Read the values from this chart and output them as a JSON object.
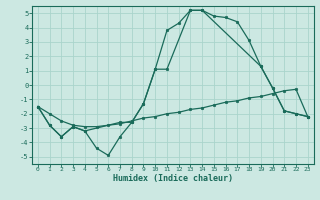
{
  "xlabel": "Humidex (Indice chaleur)",
  "background_color": "#cce8e2",
  "grid_color": "#aad4cc",
  "line_color": "#1a6b5a",
  "xlim": [
    -0.5,
    23.5
  ],
  "ylim": [
    -5.5,
    5.5
  ],
  "yticks": [
    -5,
    -4,
    -3,
    -2,
    -1,
    0,
    1,
    2,
    3,
    4,
    5
  ],
  "xticks": [
    0,
    1,
    2,
    3,
    4,
    5,
    6,
    7,
    8,
    9,
    10,
    11,
    12,
    13,
    14,
    15,
    16,
    17,
    18,
    19,
    20,
    21,
    22,
    23
  ],
  "line1_x": [
    0,
    1,
    2,
    3,
    4,
    5,
    6,
    7,
    8,
    9,
    10,
    11,
    12,
    13,
    14,
    15,
    16,
    17,
    18,
    19,
    20,
    21,
    22,
    23
  ],
  "line1_y": [
    -1.5,
    -2.8,
    -3.6,
    -2.9,
    -3.2,
    -4.4,
    -4.9,
    -3.6,
    -2.6,
    -1.3,
    1.1,
    3.8,
    4.3,
    5.2,
    5.2,
    4.8,
    4.7,
    4.4,
    3.1,
    1.3,
    -0.2,
    -1.8,
    -2.0,
    -2.2
  ],
  "line2_x": [
    0,
    1,
    2,
    3,
    4,
    5,
    6,
    7,
    8,
    9,
    10,
    11,
    12,
    13,
    14,
    15,
    16,
    17,
    18,
    19,
    20,
    21,
    22,
    23
  ],
  "line2_y": [
    -1.5,
    -2.0,
    -2.5,
    -2.8,
    -2.9,
    -2.9,
    -2.8,
    -2.7,
    -2.5,
    -2.3,
    -2.2,
    -2.0,
    -1.9,
    -1.7,
    -1.6,
    -1.4,
    -1.2,
    -1.1,
    -0.9,
    -0.8,
    -0.6,
    -0.4,
    -0.3,
    -2.2
  ],
  "line3_x": [
    0,
    1,
    2,
    3,
    4,
    7,
    8,
    9,
    10,
    11,
    13,
    14,
    19,
    20,
    21,
    22,
    23
  ],
  "line3_y": [
    -1.5,
    -2.8,
    -3.6,
    -2.9,
    -3.2,
    -2.6,
    -2.6,
    -1.3,
    1.1,
    1.1,
    5.2,
    5.2,
    1.3,
    -0.2,
    -1.8,
    -2.0,
    -2.2
  ]
}
